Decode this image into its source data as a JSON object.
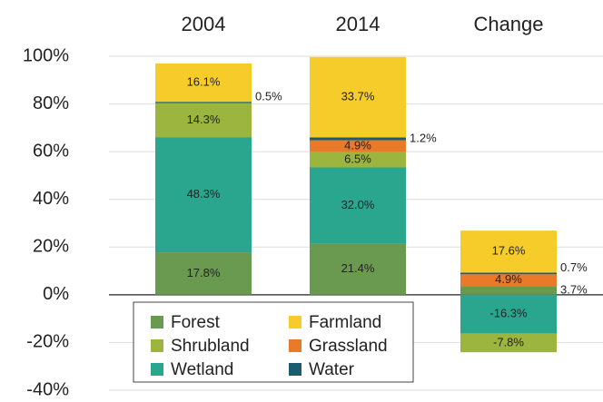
{
  "chart_data": {
    "type": "stacked_bar",
    "categories": [
      "2004",
      "2014",
      "Change"
    ],
    "series": [
      {
        "name": "Forest",
        "color": "#6a9a4f",
        "values": [
          17.8,
          21.4,
          3.7
        ],
        "value_labels": [
          "17.8%",
          "21.4%",
          "3.7%"
        ]
      },
      {
        "name": "Shrubland",
        "color": "#9cb53e",
        "values": [
          14.3,
          6.5,
          -7.8
        ],
        "value_labels": [
          "14.3%",
          "6.5%",
          "-7.8%"
        ]
      },
      {
        "name": "Wetland",
        "color": "#2aa68f",
        "values": [
          48.3,
          32.0,
          -16.3
        ],
        "value_labels": [
          "48.3%",
          "32.0%",
          "-16.3%"
        ]
      },
      {
        "name": "Farmland",
        "color": "#f5cc2a",
        "values": [
          16.1,
          33.7,
          17.6
        ],
        "value_labels": [
          "16.1%",
          "33.7%",
          "17.6%"
        ]
      },
      {
        "name": "Grassland",
        "color": "#e87a2a",
        "values": [
          null,
          4.9,
          4.9
        ],
        "value_labels": [
          null,
          "4.9%",
          "4.9%"
        ]
      },
      {
        "name": "Water",
        "color": "#1d5c6e",
        "values": [
          0.5,
          1.2,
          0.7
        ],
        "value_labels": [
          "0.5%",
          "1.2%",
          "0.7%"
        ]
      }
    ],
    "ylim": [
      -40,
      100
    ],
    "yticks": [
      {
        "value": -40,
        "label": "-40%"
      },
      {
        "value": -20,
        "label": "-20%"
      },
      {
        "value": 0,
        "label": "0%"
      },
      {
        "value": 20,
        "label": "20%"
      },
      {
        "value": 40,
        "label": "40%"
      },
      {
        "value": 60,
        "label": "60%"
      },
      {
        "value": 80,
        "label": "80%"
      },
      {
        "value": 100,
        "label": "100%"
      }
    ],
    "grid": true
  }
}
